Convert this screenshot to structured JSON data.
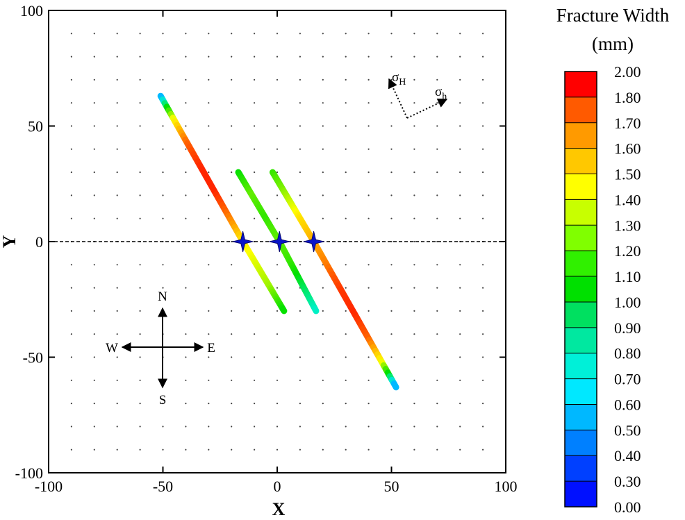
{
  "chart_data": {
    "type": "line",
    "title": "",
    "xlabel": "X",
    "ylabel": "Y",
    "xlim": [
      -100,
      100
    ],
    "ylim": [
      -100,
      100
    ],
    "x_ticks": [
      "-100",
      "-50",
      "0",
      "50",
      "100"
    ],
    "y_ticks": [
      "-100",
      "-50",
      "0",
      "50",
      "100"
    ],
    "grid": "dotted points, spacing 10",
    "reference_line": {
      "y": 0,
      "style": "dashed"
    },
    "fractures": [
      {
        "start": [
          -51,
          63
        ],
        "end": [
          -15,
          0
        ],
        "widths": [
          0.5,
          1.45,
          1.75,
          1.9,
          1.9,
          1.7,
          1.5
        ]
      },
      {
        "start": [
          -15,
          0
        ],
        "end": [
          3,
          -30
        ],
        "widths": [
          1.5,
          1.4,
          1.3,
          1.0
        ]
      },
      {
        "start": [
          -17,
          30
        ],
        "end": [
          1,
          0
        ],
        "widths": [
          1.0,
          1.2,
          1.1,
          1.2
        ]
      },
      {
        "start": [
          1,
          0
        ],
        "end": [
          17,
          -30
        ],
        "widths": [
          1.2,
          1.1,
          0.9,
          0.75
        ]
      },
      {
        "start": [
          -2,
          30
        ],
        "end": [
          16,
          0
        ],
        "widths": [
          1.1,
          1.3,
          1.5,
          1.6
        ]
      },
      {
        "start": [
          16,
          0
        ],
        "end": [
          52,
          -63
        ],
        "widths": [
          1.6,
          1.7,
          1.85,
          1.9,
          1.75,
          1.45,
          0.5
        ]
      }
    ],
    "perforations": [
      [
        -15,
        0
      ],
      [
        1,
        0
      ],
      [
        16,
        0
      ]
    ],
    "colorbar": {
      "title_line1": "Fracture Width",
      "title_line2": "(mm)",
      "min": 0,
      "max": 2,
      "labels": [
        "2.00",
        "1.80",
        "1.70",
        "1.60",
        "1.50",
        "1.40",
        "1.30",
        "1.20",
        "1.10",
        "1.00",
        "0.90",
        "0.80",
        "0.70",
        "0.60",
        "0.50",
        "0.40",
        "0.30",
        "0.00"
      ],
      "colors": [
        "#ff0000",
        "#ff5a00",
        "#ff9a00",
        "#ffc800",
        "#ffff00",
        "#c8ff00",
        "#80ff00",
        "#30f000",
        "#00e000",
        "#00e060",
        "#00e8a0",
        "#00f0d8",
        "#00e8ff",
        "#00b8ff",
        "#0080ff",
        "#0040ff",
        "#0010ff"
      ]
    },
    "compass": {
      "north": "N",
      "south": "S",
      "east": "E",
      "west": "W"
    },
    "stress": {
      "sigma": "σ",
      "max_subscript": "H",
      "min_subscript": "h"
    }
  }
}
